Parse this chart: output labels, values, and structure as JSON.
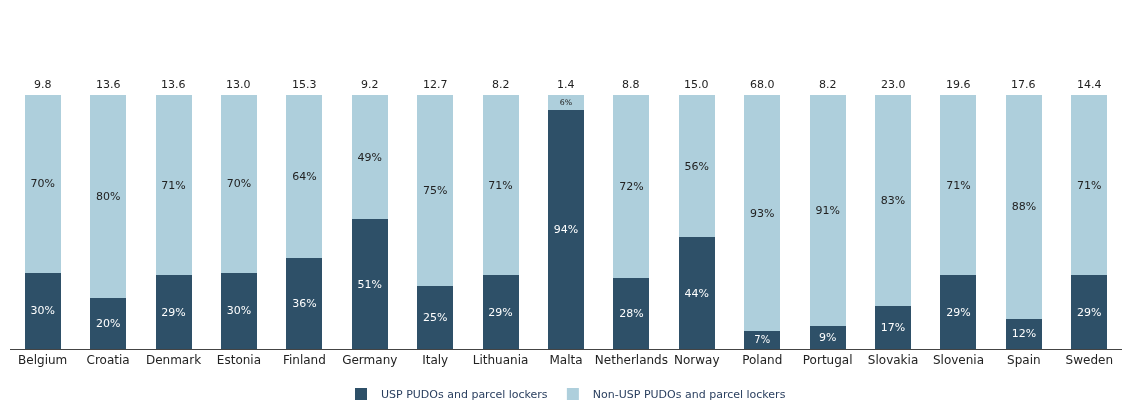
{
  "chart_data": {
    "type": "bar",
    "stacked": true,
    "categories": [
      "Belgium",
      "Croatia",
      "Denmark",
      "Estonia",
      "Finland",
      "Germany",
      "Italy",
      "Lithuania",
      "Malta",
      "Netherlands",
      "Norway",
      "Poland",
      "Portugal",
      "Slovakia",
      "Slovenia",
      "Spain",
      "Sweden"
    ],
    "series": [
      {
        "name": "USP PUDOs and parcel lockers",
        "color": "#2e5068",
        "values": [
          30,
          20,
          29,
          30,
          36,
          51,
          25,
          29,
          94,
          28,
          44,
          7,
          9,
          17,
          29,
          12,
          29
        ],
        "value_labels": [
          "30%",
          "20%",
          "29%",
          "30%",
          "36%",
          "51%",
          "25%",
          "29%",
          "94%",
          "28%",
          "44%",
          "7%",
          "9%",
          "17%",
          "29%",
          "12%",
          "29%"
        ]
      },
      {
        "name": "Non-USP PUDOs and parcel lockers",
        "color": "#aecfdc",
        "values": [
          70,
          80,
          71,
          70,
          64,
          49,
          75,
          71,
          6,
          72,
          56,
          93,
          91,
          83,
          71,
          88,
          71
        ],
        "value_labels": [
          "70%",
          "80%",
          "71%",
          "70%",
          "64%",
          "49%",
          "75%",
          "71%",
          "6%",
          "72%",
          "56%",
          "93%",
          "91%",
          "83%",
          "71%",
          "88%",
          "71%"
        ]
      }
    ],
    "annotations": [
      "9.8",
      "13.6",
      "13.6",
      "13.0",
      "15.3",
      "9.2",
      "12.7",
      "8.2",
      "1.4",
      "8.8",
      "15.0",
      "68.0",
      "8.2",
      "23.0",
      "19.6",
      "17.6",
      "14.4"
    ],
    "ylim": [
      0,
      100
    ],
    "tick_labels": "x",
    "legend": "bottom"
  }
}
